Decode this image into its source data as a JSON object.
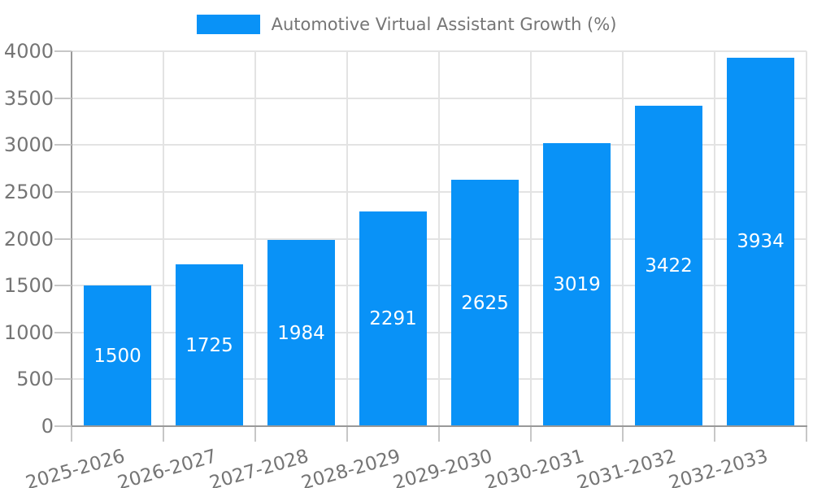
{
  "chart_data": {
    "type": "bar",
    "title": "Automotive Virtual Assistant Growth (%)",
    "categories": [
      "2025-2026",
      "2026-2027",
      "2027-2028",
      "2028-2029",
      "2029-2030",
      "2030-2031",
      "2031-2032",
      "2032-2033"
    ],
    "values": [
      1500,
      1725,
      1984,
      2291,
      2625,
      3019,
      3422,
      3934
    ],
    "xlabel": "",
    "ylabel": "",
    "ylim": [
      0,
      4000
    ],
    "ytick_step": 500,
    "ytick_labels": [
      "0",
      "500",
      "1000",
      "1500",
      "2000",
      "2500",
      "3000",
      "3500",
      "4000"
    ],
    "grid": true,
    "legend_position": "top-center",
    "value_labels": "inside-center",
    "colors": {
      "bar": "#0992f7",
      "grid": "#e3e3e3",
      "axis": "#999999",
      "tick": "#c7c7c7",
      "text": "#757575",
      "value_text": "#ffffff",
      "background": "#ffffff"
    }
  }
}
